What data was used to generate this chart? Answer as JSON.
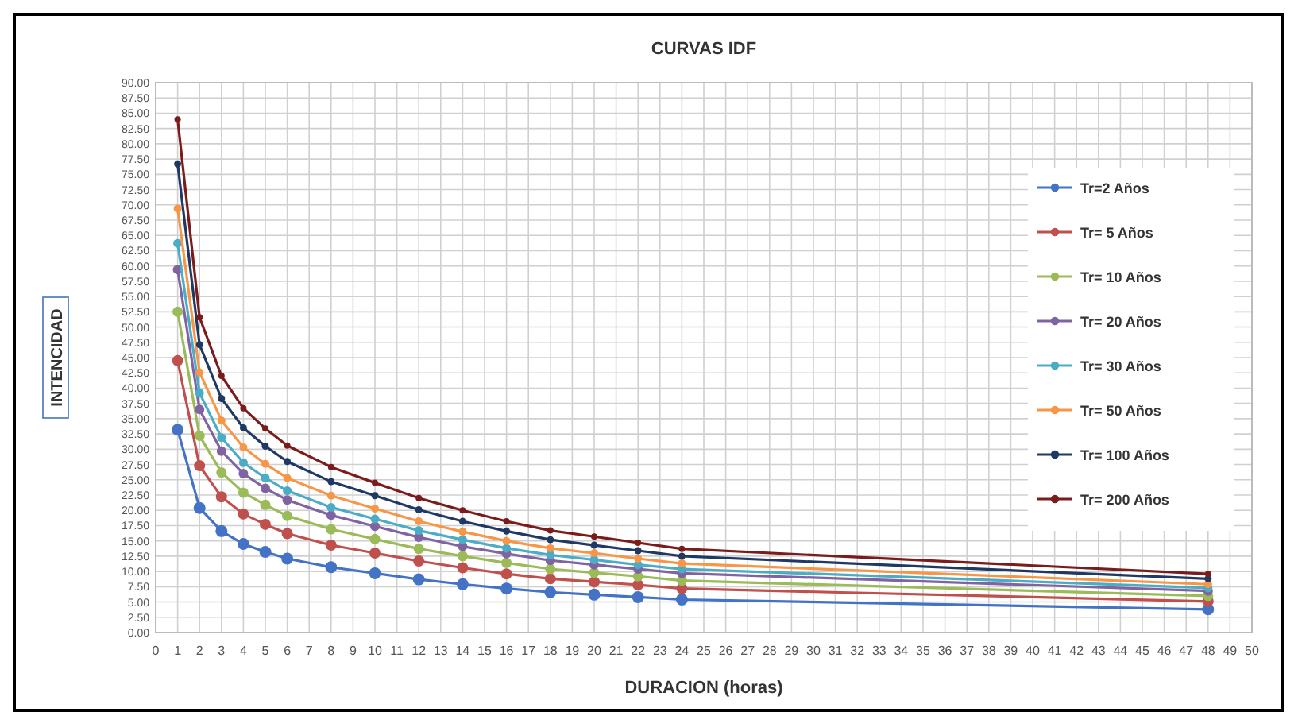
{
  "chart_data": {
    "type": "line",
    "title": "CURVAS IDF",
    "xlabel": "DURACION (horas)",
    "ylabel": "INTENCIDAD",
    "x": [
      1,
      2,
      3,
      4,
      5,
      6,
      8,
      10,
      12,
      14,
      16,
      18,
      20,
      22,
      24,
      48
    ],
    "xlim": [
      0,
      50
    ],
    "xticks": [
      0,
      1,
      2,
      3,
      4,
      5,
      6,
      7,
      8,
      9,
      10,
      11,
      12,
      13,
      14,
      15,
      16,
      17,
      18,
      19,
      20,
      21,
      22,
      23,
      24,
      25,
      26,
      27,
      28,
      29,
      30,
      31,
      32,
      33,
      34,
      35,
      36,
      37,
      38,
      39,
      40,
      41,
      42,
      43,
      44,
      45,
      46,
      47,
      48,
      49,
      50
    ],
    "ylim": [
      0,
      90
    ],
    "yticks": [
      {
        "value": 0,
        "label": "0.00"
      },
      {
        "value": 2.5,
        "label": "2.50"
      },
      {
        "value": 5,
        "label": "5.00"
      },
      {
        "value": 7.5,
        "label": "7.50"
      },
      {
        "value": 10,
        "label": "10.00"
      },
      {
        "value": 12.5,
        "label": "12.50"
      },
      {
        "value": 15,
        "label": "15.00"
      },
      {
        "value": 17.5,
        "label": "17.50"
      },
      {
        "value": 20,
        "label": "20.00"
      },
      {
        "value": 22.5,
        "label": "22.50"
      },
      {
        "value": 25,
        "label": "25.00"
      },
      {
        "value": 27.5,
        "label": "27.50"
      },
      {
        "value": 30,
        "label": "30.00"
      },
      {
        "value": 32.5,
        "label": "32.50"
      },
      {
        "value": 35,
        "label": "35.00"
      },
      {
        "value": 37.5,
        "label": "37.50"
      },
      {
        "value": 40,
        "label": "40.00"
      },
      {
        "value": 42.5,
        "label": "42.50"
      },
      {
        "value": 45,
        "label": "45.00"
      },
      {
        "value": 47.5,
        "label": "47.50"
      },
      {
        "value": 50,
        "label": "50.00"
      },
      {
        "value": 52.5,
        "label": "52.50"
      },
      {
        "value": 55,
        "label": "55.00"
      },
      {
        "value": 57.5,
        "label": "57.50"
      },
      {
        "value": 60,
        "label": "60.00"
      },
      {
        "value": 62.5,
        "label": "62.50"
      },
      {
        "value": 65,
        "label": "65.00"
      },
      {
        "value": 67.5,
        "label": "67.50"
      },
      {
        "value": 70,
        "label": "70.00"
      },
      {
        "value": 72.5,
        "label": "72.50"
      },
      {
        "value": 75,
        "label": "75.00"
      },
      {
        "value": 77.5,
        "label": "77.50"
      },
      {
        "value": 80,
        "label": "80.00"
      },
      {
        "value": 82.5,
        "label": "82.50"
      },
      {
        "value": 85,
        "label": "85.00"
      },
      {
        "value": 87.5,
        "label": "87.50"
      },
      {
        "value": 90,
        "label": "90.00"
      }
    ],
    "grid": true,
    "legend": "right",
    "marker": "circle",
    "line_style": "solid",
    "series": [
      {
        "name": "Tr=2 Años",
        "color": "#4472c4",
        "values": [
          33.2,
          20.4,
          16.6,
          14.5,
          13.2,
          12.1,
          10.7,
          9.7,
          8.7,
          7.9,
          7.2,
          6.6,
          6.2,
          5.8,
          5.4,
          3.8
        ]
      },
      {
        "name": "Tr= 5 Años",
        "color": "#c0504d",
        "values": [
          44.5,
          27.3,
          22.2,
          19.4,
          17.7,
          16.2,
          14.3,
          13.0,
          11.7,
          10.6,
          9.6,
          8.8,
          8.3,
          7.8,
          7.2,
          5.1
        ]
      },
      {
        "name": "Tr= 10 Años",
        "color": "#9bbb59",
        "values": [
          52.5,
          32.2,
          26.2,
          22.9,
          20.9,
          19.1,
          16.9,
          15.3,
          13.7,
          12.5,
          11.4,
          10.4,
          9.8,
          9.2,
          8.5,
          6.0
        ]
      },
      {
        "name": "Tr= 20 Años",
        "color": "#8064a2",
        "values": [
          59.4,
          36.5,
          29.7,
          26.0,
          23.6,
          21.7,
          19.2,
          17.4,
          15.6,
          14.1,
          12.9,
          11.8,
          11.1,
          10.4,
          9.7,
          6.8
        ]
      },
      {
        "name": "Tr= 30 Años",
        "color": "#4bacc6",
        "values": [
          63.7,
          39.2,
          31.9,
          27.8,
          25.3,
          23.2,
          20.5,
          18.6,
          16.7,
          15.2,
          13.8,
          12.7,
          11.9,
          11.1,
          10.4,
          7.3
        ]
      },
      {
        "name": "Tr= 50 Años",
        "color": "#f79646",
        "values": [
          69.4,
          42.6,
          34.7,
          30.3,
          27.6,
          25.3,
          22.4,
          20.3,
          18.2,
          16.5,
          15.0,
          13.8,
          13.0,
          12.1,
          11.3,
          7.9
        ]
      },
      {
        "name": "Tr= 100 Años",
        "color": "#1f3864",
        "values": [
          76.7,
          47.1,
          38.3,
          33.5,
          30.5,
          28.0,
          24.7,
          22.4,
          20.1,
          18.2,
          16.6,
          15.2,
          14.3,
          13.4,
          12.5,
          8.8
        ]
      },
      {
        "name": "Tr= 200 Años",
        "color": "#7b1c1c",
        "values": [
          84.0,
          51.6,
          42.0,
          36.7,
          33.4,
          30.6,
          27.1,
          24.5,
          22.0,
          20.0,
          18.2,
          16.7,
          15.7,
          14.7,
          13.7,
          9.6
        ]
      }
    ]
  }
}
